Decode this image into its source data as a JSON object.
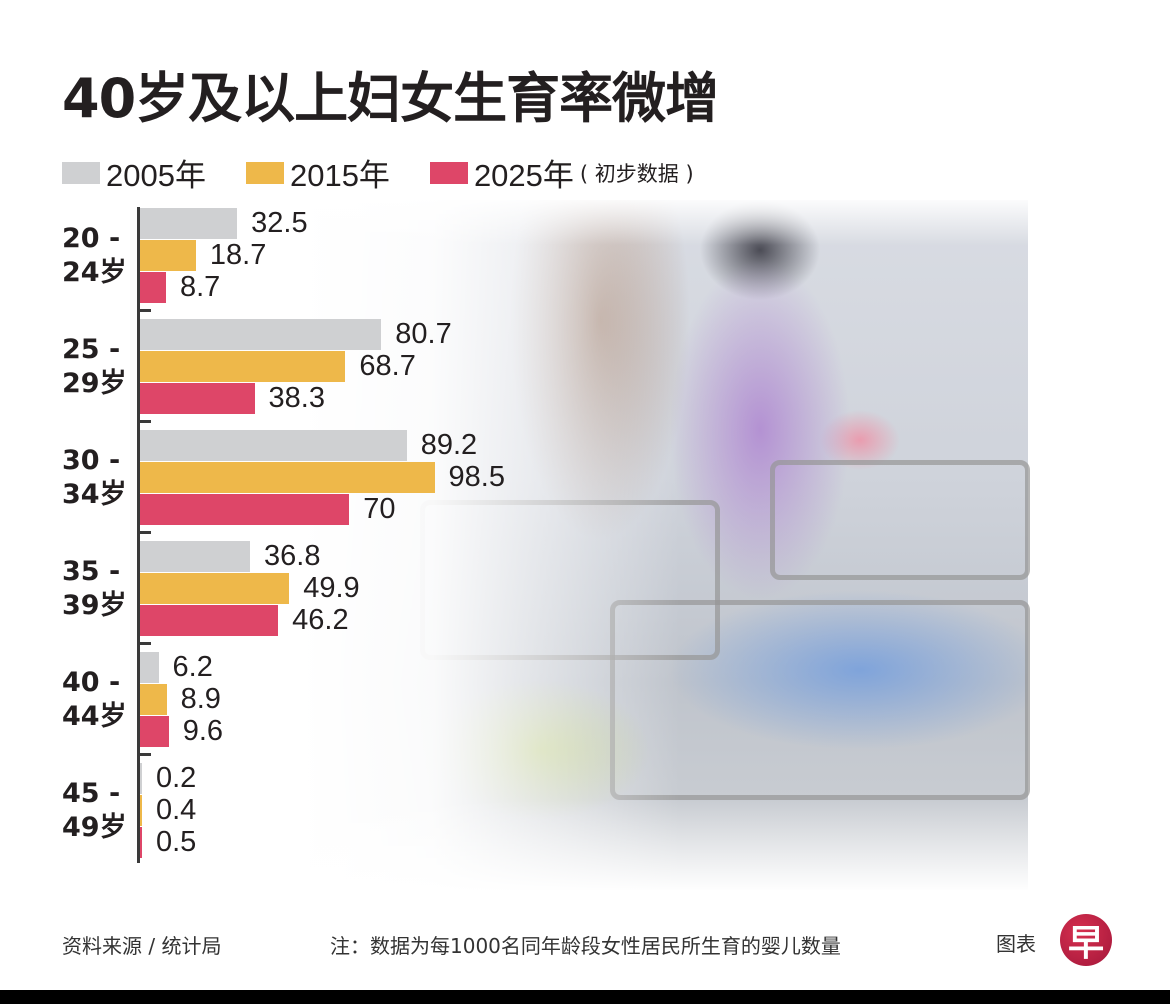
{
  "title": "40岁及以上妇女生育率微增",
  "legend": {
    "items": [
      {
        "label": "2005年",
        "color": "#cfd0d2"
      },
      {
        "label": "2015年",
        "color": "#eeb84a"
      },
      {
        "label": "2025年",
        "color": "#de4668"
      }
    ],
    "note": "( 初步数据 )"
  },
  "groups": [
    {
      "label_line1": "20 -",
      "label_line2": "24岁",
      "values": [
        "32.5",
        "18.7",
        "8.7"
      ]
    },
    {
      "label_line1": "25 -",
      "label_line2": "29岁",
      "values": [
        "80.7",
        "68.7",
        "38.3"
      ]
    },
    {
      "label_line1": "30 -",
      "label_line2": "34岁",
      "values": [
        "89.2",
        "98.5",
        "70"
      ]
    },
    {
      "label_line1": "35 -",
      "label_line2": "39岁",
      "values": [
        "36.8",
        "49.9",
        "46.2"
      ]
    },
    {
      "label_line1": "40 -",
      "label_line2": "44岁",
      "values": [
        "6.2",
        "8.9",
        "9.6"
      ]
    },
    {
      "label_line1": "45 -",
      "label_line2": "49岁",
      "values": [
        "0.2",
        "0.4",
        "0.5"
      ]
    }
  ],
  "footer": {
    "source": "资料来源 / 统计局",
    "note": "注：数据为每1000名同年龄段女性居民所生育的婴儿数量",
    "credit": "图表",
    "logo_glyph": "早"
  },
  "chart_data": {
    "type": "bar",
    "orientation": "horizontal",
    "title": "40岁及以上妇女生育率微增",
    "categories": [
      "20-24岁",
      "25-29岁",
      "30-34岁",
      "35-39岁",
      "40-44岁",
      "45-49岁"
    ],
    "series": [
      {
        "name": "2005年",
        "color": "#cfd0d2",
        "values": [
          32.5,
          80.7,
          89.2,
          36.8,
          6.2,
          0.2
        ]
      },
      {
        "name": "2015年",
        "color": "#eeb84a",
        "values": [
          18.7,
          68.7,
          98.5,
          49.9,
          8.9,
          0.4
        ]
      },
      {
        "name": "2025年 (初步数据)",
        "color": "#de4668",
        "values": [
          8.7,
          38.3,
          70,
          46.2,
          9.6,
          0.5
        ]
      }
    ],
    "xlabel": "",
    "ylabel": "",
    "unit": "每1000名同年龄段女性居民所生育的婴儿数量",
    "legend_position": "top",
    "grid": false,
    "data_labels": true,
    "source": "资料来源 / 统计局"
  }
}
